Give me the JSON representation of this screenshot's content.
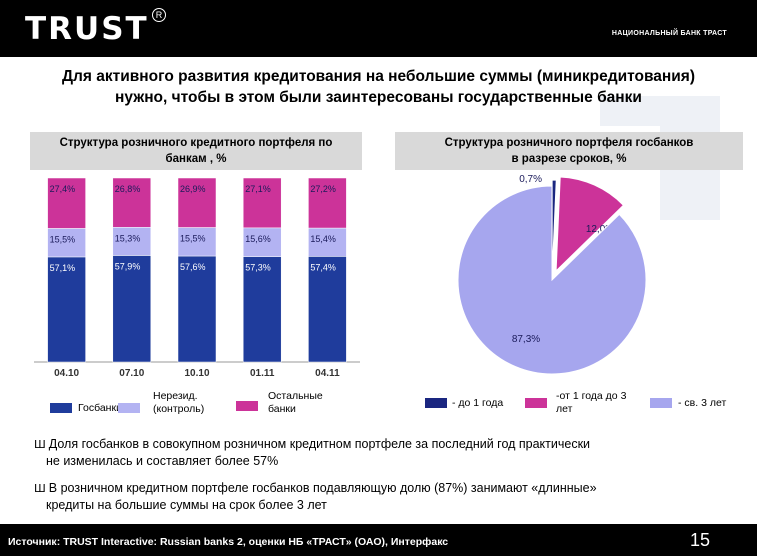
{
  "header": {
    "logo": "TRUST",
    "registered_mark": "R",
    "bank_name": "НАЦИОНАЛЬНЫЙ БАНК ТРАСТ"
  },
  "headline": {
    "line1": "Для активного развития кредитования на небольшие суммы (миникредитования)",
    "line2": "нужно, чтобы в этом были заинтересованы государственные банки"
  },
  "colors": {
    "state_banks": "#1f3c9c",
    "nonresident": "#b3b3f2",
    "others": "#cc3399",
    "under_1y": "#1a2680",
    "y1_to_3": "#cc3399",
    "over_3y": "#a6a6ee"
  },
  "chart_data": [
    {
      "type": "bar",
      "stacked": true,
      "title_line1": "Структура розничного кредитного портфеля по",
      "title_line2": "банкам , %",
      "categories": [
        "04.10",
        "07.10",
        "10.10",
        "01.11",
        "04.11"
      ],
      "series": [
        {
          "name": "Госбанки",
          "values": [
            57.1,
            57.9,
            57.6,
            57.3,
            57.4
          ],
          "labels": [
            "57,1%",
            "57,9%",
            "57,6%",
            "57,3%",
            "57,4%"
          ]
        },
        {
          "name": "Нерезид. (контроль)",
          "values": [
            15.5,
            15.3,
            15.5,
            15.6,
            15.4
          ],
          "labels": [
            "15,5%",
            "15,3%",
            "15,5%",
            "15,6%",
            "15,4%"
          ]
        },
        {
          "name": "Остальные банки",
          "values": [
            27.4,
            26.8,
            26.9,
            27.1,
            27.2
          ],
          "labels": [
            "27,4%",
            "26,8%",
            "26,9%",
            "27,1%",
            "27,2%"
          ]
        }
      ],
      "ylim": [
        0,
        100
      ],
      "legend": [
        {
          "line1": "Госбанки",
          "line2": ""
        },
        {
          "line1": "Нерезид.",
          "line2": "(контроль)"
        },
        {
          "line1": "Остальные",
          "line2": "банки"
        }
      ]
    },
    {
      "type": "pie",
      "title_line1": "Структура розничного портфеля госбанков",
      "title_line2": "в разрезе сроков, %",
      "slices": [
        {
          "name": "до 1 года",
          "value": 0.7,
          "label": "0,7%"
        },
        {
          "name": "от 1 года до 3 лет",
          "value": 12.0,
          "label": "12,0%"
        },
        {
          "name": "св. 3 лет",
          "value": 87.3,
          "label": "87,3%"
        }
      ],
      "legend": [
        {
          "line1": "- до 1 года",
          "line2": ""
        },
        {
          "line1": "-от 1 года до 3",
          "line2": "лет"
        },
        {
          "line1": "-  св. 3 лет",
          "line2": ""
        }
      ]
    }
  ],
  "bullets": [
    {
      "mark": "Ш",
      "line1": "Доля госбанков в совокупном розничном кредитном портфеле за последний год практически",
      "line2": "не изменилась и составляет более 57%"
    },
    {
      "mark": "Ш",
      "line1": "В розничном кредитном портфеле госбанков подавляющую долю (87%) занимают «длинные»",
      "line2": "кредиты на большие суммы на срок более 3 лет"
    }
  ],
  "footer": {
    "source": "Источник: TRUST Interactive: Russian banks 2, оценки НБ «ТРАСТ» (ОАО), Интерфакс",
    "page_number": "15"
  }
}
